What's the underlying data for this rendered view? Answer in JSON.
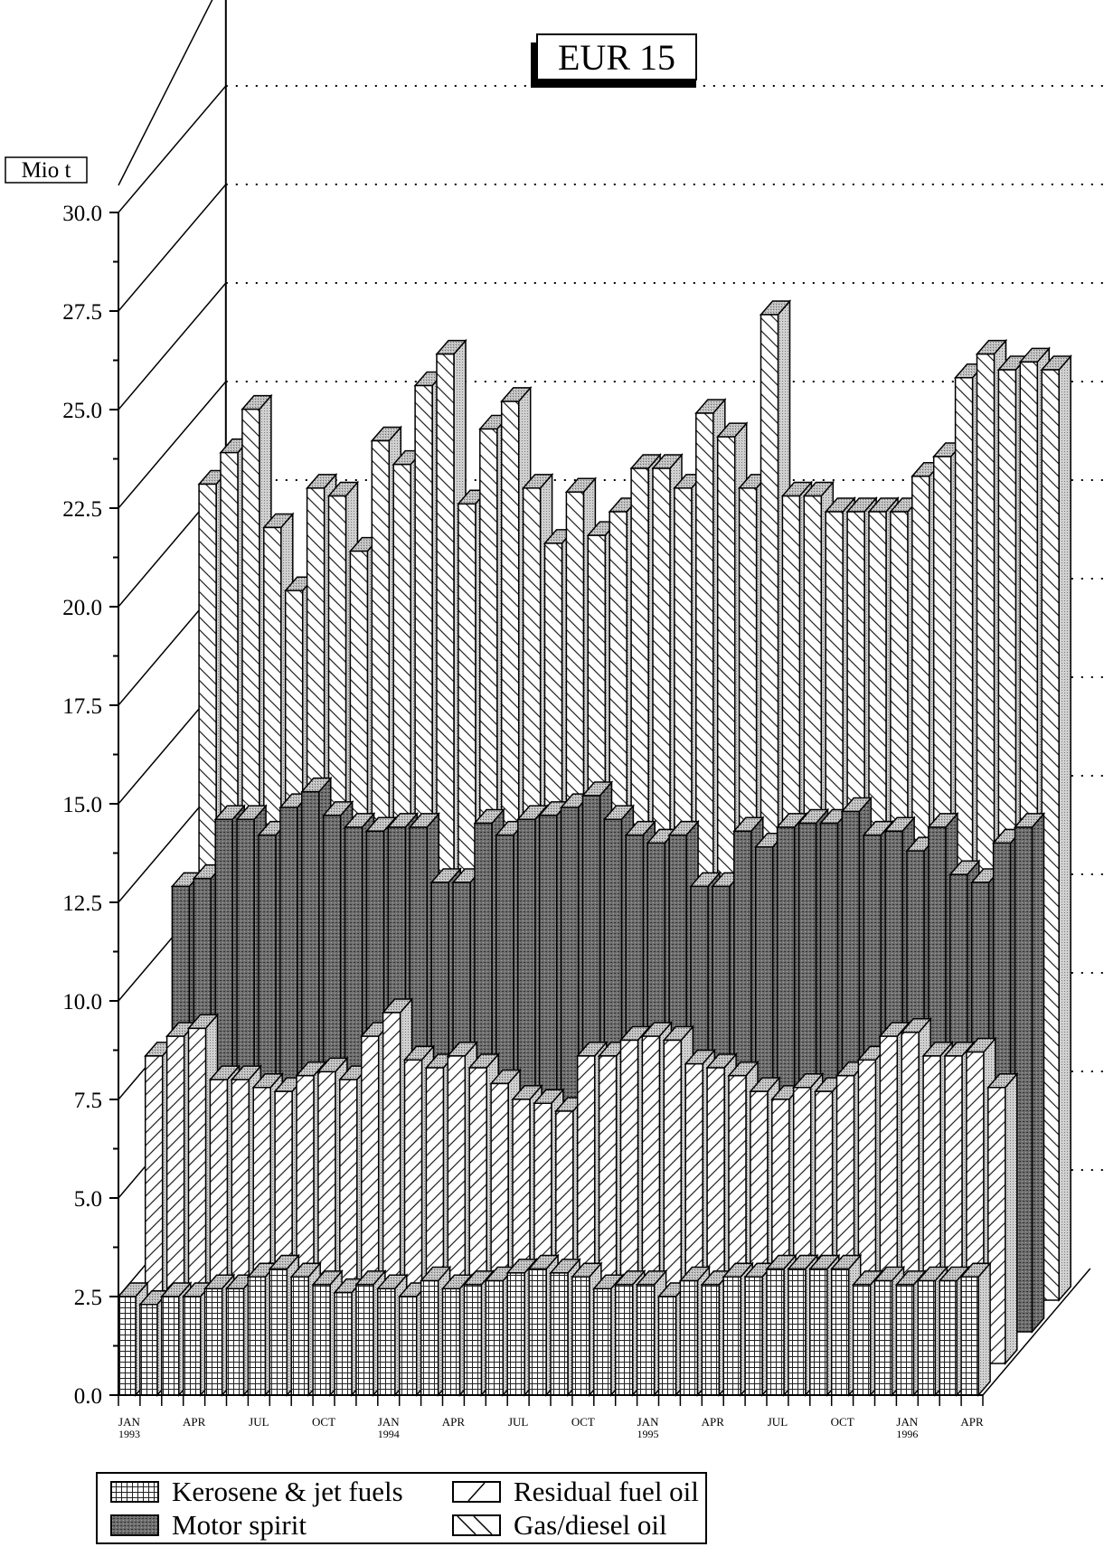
{
  "title": "EUR 15",
  "unit_label": "Mio t",
  "chart_data": {
    "type": "bar",
    "style": "3d-grouped-depth",
    "title": "EUR 15",
    "ylabel": "Mio t",
    "ylim": [
      0,
      30
    ],
    "y_ticks": [
      "0.0",
      "2.5",
      "5.0",
      "7.5",
      "10.0",
      "12.5",
      "15.0",
      "17.5",
      "20.0",
      "22.5",
      "25.0",
      "27.5",
      "30.0"
    ],
    "x_tick_labels": [
      {
        "month": 0,
        "label": "JAN",
        "year": "1993"
      },
      {
        "month": 3,
        "label": "APR",
        "year": ""
      },
      {
        "month": 6,
        "label": "JUL",
        "year": ""
      },
      {
        "month": 9,
        "label": "OCT",
        "year": ""
      },
      {
        "month": 12,
        "label": "JAN",
        "year": "1994"
      },
      {
        "month": 15,
        "label": "APR",
        "year": ""
      },
      {
        "month": 18,
        "label": "JUL",
        "year": ""
      },
      {
        "month": 21,
        "label": "OCT",
        "year": ""
      },
      {
        "month": 24,
        "label": "JAN",
        "year": "1995"
      },
      {
        "month": 27,
        "label": "APR",
        "year": ""
      },
      {
        "month": 30,
        "label": "JUL",
        "year": ""
      },
      {
        "month": 33,
        "label": "OCT",
        "year": ""
      },
      {
        "month": 36,
        "label": "JAN",
        "year": "1996"
      },
      {
        "month": 39,
        "label": "APR",
        "year": ""
      }
    ],
    "grid": "dotted horizontal lines on back wall",
    "legend_position": "bottom",
    "series": [
      {
        "name": "Kerosene & jet fuels",
        "pattern": "grid",
        "values": [
          2.5,
          2.3,
          2.5,
          2.5,
          2.7,
          2.7,
          3.0,
          3.2,
          3.0,
          2.8,
          2.6,
          2.8,
          2.7,
          2.5,
          2.9,
          2.7,
          2.8,
          2.9,
          3.1,
          3.2,
          3.1,
          3.0,
          2.7,
          2.8,
          2.8,
          2.5,
          2.9,
          2.8,
          3.0,
          3.0,
          3.2,
          3.2,
          3.2,
          3.2,
          2.8,
          2.9,
          2.8,
          2.9,
          2.9,
          3.0
        ]
      },
      {
        "name": "Residual fuel oil",
        "pattern": "forward-hatch",
        "values": [
          7.8,
          8.3,
          8.5,
          7.2,
          7.2,
          7.0,
          6.9,
          7.3,
          7.4,
          7.2,
          8.3,
          8.9,
          7.7,
          7.5,
          7.8,
          7.5,
          7.1,
          6.7,
          6.6,
          6.4,
          7.8,
          7.8,
          8.2,
          8.3,
          8.2,
          7.6,
          7.5,
          7.3,
          6.9,
          6.7,
          7.0,
          6.9,
          7.3,
          7.7,
          8.3,
          8.4,
          7.8,
          7.8,
          7.9,
          7.0
        ]
      },
      {
        "name": "Motor spirit",
        "pattern": "dark-stipple",
        "values": [
          11.3,
          11.5,
          13.0,
          13.0,
          12.6,
          13.3,
          13.7,
          13.1,
          12.8,
          12.7,
          12.8,
          12.8,
          11.4,
          11.4,
          12.9,
          12.6,
          13.0,
          13.1,
          13.3,
          13.6,
          13.0,
          12.6,
          12.4,
          12.6,
          11.3,
          11.3,
          12.7,
          12.3,
          12.8,
          12.9,
          12.9,
          13.2,
          12.6,
          12.7,
          12.2,
          12.8,
          11.6,
          11.4,
          12.4,
          12.8
        ]
      },
      {
        "name": "Gas/diesel oil",
        "pattern": "back-hatch",
        "values": [
          20.7,
          21.5,
          22.6,
          19.6,
          18.0,
          20.6,
          20.4,
          19.0,
          21.8,
          21.2,
          23.2,
          24.0,
          20.2,
          22.1,
          22.8,
          20.6,
          19.2,
          20.5,
          19.4,
          20.0,
          21.1,
          21.1,
          20.6,
          22.5,
          21.9,
          20.6,
          25.0,
          20.4,
          20.4,
          20.0,
          20.0,
          20.0,
          20.0,
          20.9,
          21.4,
          23.4,
          24.0,
          23.6,
          23.8,
          23.6
        ]
      }
    ]
  }
}
